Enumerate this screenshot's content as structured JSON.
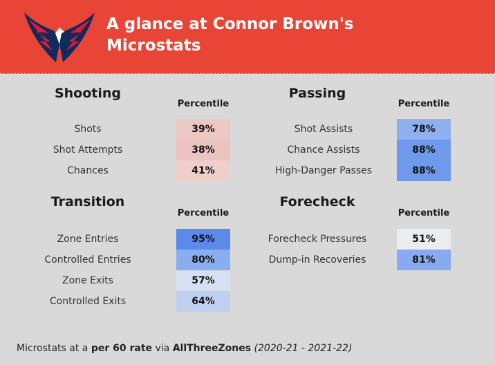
{
  "header": {
    "title_line1": "A glance at Connor Brown's",
    "title_line2": "Microstats",
    "logo": "capitals-eagle-logo"
  },
  "percentile_label": "Percentile",
  "sections": [
    {
      "title": "Shooting",
      "rows": [
        {
          "label": "Shots",
          "value": "39%",
          "pct": 39,
          "color": "#ecc8c5"
        },
        {
          "label": "Shot Attempts",
          "value": "38%",
          "pct": 38,
          "color": "#ebc3c0"
        },
        {
          "label": "Chances",
          "value": "41%",
          "pct": 41,
          "color": "#eecfcc"
        }
      ]
    },
    {
      "title": "Passing",
      "rows": [
        {
          "label": "Shot Assists",
          "value": "78%",
          "pct": 78,
          "color": "#8fb0ef"
        },
        {
          "label": "Chance Assists",
          "value": "88%",
          "pct": 88,
          "color": "#6e99ec"
        },
        {
          "label": "High-Danger Passes",
          "value": "88%",
          "pct": 88,
          "color": "#6e99ec"
        }
      ]
    },
    {
      "title": "Transition",
      "rows": [
        {
          "label": "Zone Entries",
          "value": "95%",
          "pct": 95,
          "color": "#5b8ae9"
        },
        {
          "label": "Controlled Entries",
          "value": "80%",
          "pct": 80,
          "color": "#8aadef"
        },
        {
          "label": "Zone Exits",
          "value": "57%",
          "pct": 57,
          "color": "#d5e0f3"
        },
        {
          "label": "Controlled Exits",
          "value": "64%",
          "pct": 64,
          "color": "#bfd0f1"
        }
      ]
    },
    {
      "title": "Forecheck",
      "rows": [
        {
          "label": "Forecheck Pressures",
          "value": "51%",
          "pct": 51,
          "color": "#ebecee"
        },
        {
          "label": "Dump-in Recoveries",
          "value": "81%",
          "pct": 81,
          "color": "#87abee"
        }
      ]
    }
  ],
  "footer": {
    "prefix": "Microstats at a ",
    "rate": "per 60 rate",
    "via": " via ",
    "source": "AllThreeZones",
    "span": " (2020-21 - 2021-22)"
  }
}
